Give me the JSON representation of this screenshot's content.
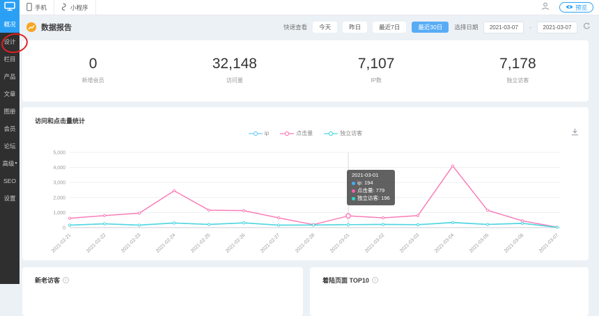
{
  "topbar": {
    "tabs": [
      {
        "label": "手机"
      },
      {
        "label": "小程序"
      }
    ],
    "preview_label": "预览"
  },
  "sidebar": {
    "active": "概况",
    "items": [
      {
        "label": "概况"
      },
      {
        "label": "设计"
      },
      {
        "label": "栏目"
      },
      {
        "label": "产品"
      },
      {
        "label": "文章"
      },
      {
        "label": "图册"
      },
      {
        "label": "会员"
      },
      {
        "label": "论坛"
      },
      {
        "label": "高级",
        "caret": true
      },
      {
        "label": "SEO"
      },
      {
        "label": "设置"
      }
    ]
  },
  "report_header": {
    "title": "数据报告",
    "quick_label": "快速查看",
    "quick_options": [
      "今天",
      "昨日",
      "最近7日",
      "最近30日"
    ],
    "active_quick": "最近30日",
    "date_label": "选择日期",
    "date_from": "2021-03-07",
    "date_separator": "-",
    "date_to": "2021-03-07"
  },
  "stats": [
    {
      "value": "0",
      "label": "新增会员"
    },
    {
      "value": "32,148",
      "label": "访问量"
    },
    {
      "value": "7,107",
      "label": "IP数"
    },
    {
      "value": "7,178",
      "label": "独立访客"
    }
  ],
  "chart_data": {
    "type": "line",
    "title": "访问和点击量统计",
    "x": [
      "2021-02-21",
      "2021-02-22",
      "2021-02-23",
      "2021-02-24",
      "2021-02-25",
      "2021-02-26",
      "2021-02-27",
      "2021-02-28",
      "2021-03-01",
      "2021-03-02",
      "2021-03-03",
      "2021-03-04",
      "2021-03-05",
      "2021-03-06",
      "2021-03-07"
    ],
    "series": [
      {
        "name": "ip",
        "color": "#74ccf5",
        "dot": "#3fb0f7",
        "values": [
          160,
          250,
          160,
          300,
          210,
          310,
          160,
          170,
          194,
          210,
          190,
          330,
          210,
          280,
          20
        ]
      },
      {
        "name": "点击量",
        "color": "#fa7cb8",
        "dot": "#fc5fae",
        "values": [
          620,
          800,
          960,
          2450,
          1160,
          1130,
          650,
          200,
          779,
          650,
          800,
          4100,
          1150,
          450,
          30
        ]
      },
      {
        "name": "独立访客",
        "color": "#4fd8df",
        "dot": "#2fd8ce",
        "values": [
          165,
          255,
          165,
          310,
          215,
          320,
          165,
          175,
          196,
          215,
          195,
          345,
          215,
          290,
          25
        ]
      }
    ],
    "ylim": [
      0,
      5000
    ],
    "ytick_step": 1000,
    "grid": true,
    "legend_position": "top-center",
    "hover": {
      "index": 8,
      "date": "2021-03-01",
      "values": [
        194,
        779,
        196
      ]
    }
  },
  "bottom_cards": {
    "left_title": "新老访客",
    "right_title": "着陆页面 TOP10"
  },
  "colors": {
    "brand_blue": "#2aa0f5",
    "active_button": "#58acf6",
    "annotation_red": "#e02121",
    "header_icon_orange": "#f5a623",
    "sidebar_bg": "#2f2f2f",
    "page_bg": "#ecf1f6"
  },
  "icons": {
    "logo": "monitor-icon",
    "tab1": "phone-icon",
    "tab2": "miniprogram-icon",
    "account": "user-icon",
    "preview": "eye-icon",
    "report": "trend-chart-icon",
    "refresh": "refresh-icon",
    "download": "download-icon",
    "info": "info-icon",
    "caret": "chevron-down-icon"
  }
}
